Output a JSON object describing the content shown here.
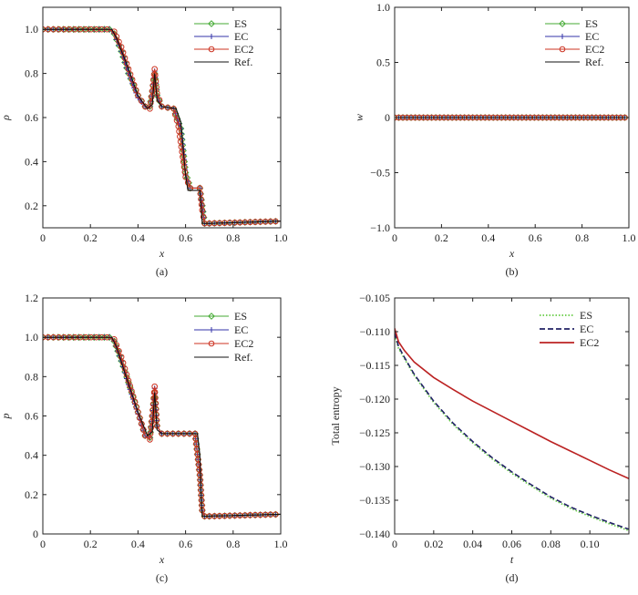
{
  "chart_data": [
    {
      "panel": "(a)",
      "type": "line",
      "xlabel": "x",
      "ylabel": "ρ",
      "xlim": [
        0,
        1
      ],
      "ylim": [
        0.1,
        1.1
      ],
      "xticks": [
        "0",
        "0.2",
        "0.4",
        "0.6",
        "0.8",
        "1.0"
      ],
      "yticks": [
        "0.2",
        "0.4",
        "0.6",
        "0.8",
        "1.0"
      ],
      "grid": false,
      "legend_position": "top-right",
      "series": [
        {
          "name": "ES",
          "color": "#44aa33",
          "marker": "diamond",
          "x": [
            0,
            0.28,
            0.3,
            0.33,
            0.36,
            0.4,
            0.43,
            0.45,
            0.46,
            0.47,
            0.48,
            0.5,
            0.55,
            0.58,
            0.6,
            0.62,
            0.66,
            0.67,
            0.68,
            0.7,
            1.0
          ],
          "y": [
            1.0,
            1.0,
            0.98,
            0.9,
            0.8,
            0.7,
            0.65,
            0.65,
            0.72,
            0.8,
            0.7,
            0.65,
            0.64,
            0.55,
            0.35,
            0.28,
            0.28,
            0.2,
            0.12,
            0.12,
            0.13
          ]
        },
        {
          "name": "EC",
          "color": "#3333aa",
          "marker": "plus",
          "x": [
            0,
            0.28,
            0.3,
            0.33,
            0.36,
            0.4,
            0.43,
            0.45,
            0.46,
            0.47,
            0.48,
            0.5,
            0.55,
            0.58,
            0.6,
            0.62,
            0.66,
            0.67,
            0.68,
            0.7,
            1.0
          ],
          "y": [
            1.0,
            1.0,
            0.98,
            0.9,
            0.8,
            0.69,
            0.65,
            0.65,
            0.72,
            0.81,
            0.7,
            0.65,
            0.64,
            0.55,
            0.34,
            0.28,
            0.28,
            0.2,
            0.12,
            0.12,
            0.13
          ]
        },
        {
          "name": "EC2",
          "color": "#cc3322",
          "marker": "circle",
          "x": [
            0,
            0.27,
            0.3,
            0.33,
            0.36,
            0.4,
            0.43,
            0.45,
            0.46,
            0.47,
            0.48,
            0.5,
            0.55,
            0.57,
            0.6,
            0.62,
            0.66,
            0.67,
            0.68,
            0.7,
            1.0
          ],
          "y": [
            1.0,
            1.0,
            0.99,
            0.92,
            0.82,
            0.7,
            0.65,
            0.64,
            0.72,
            0.82,
            0.71,
            0.65,
            0.64,
            0.56,
            0.33,
            0.28,
            0.28,
            0.18,
            0.12,
            0.12,
            0.13
          ]
        },
        {
          "name": "Ref.",
          "color": "#111111",
          "marker": "none",
          "x": [
            0,
            0.29,
            0.31,
            0.35,
            0.4,
            0.44,
            0.46,
            0.47,
            0.48,
            0.5,
            0.56,
            0.58,
            0.6,
            0.61,
            0.66,
            0.665,
            0.67,
            0.7,
            1.0
          ],
          "y": [
            1.0,
            1.0,
            0.96,
            0.85,
            0.7,
            0.64,
            0.66,
            0.8,
            0.68,
            0.65,
            0.64,
            0.58,
            0.34,
            0.27,
            0.27,
            0.2,
            0.12,
            0.12,
            0.13
          ]
        }
      ]
    },
    {
      "panel": "(b)",
      "type": "line",
      "xlabel": "x",
      "ylabel": "w",
      "xlim": [
        0,
        1
      ],
      "ylim": [
        -1,
        1
      ],
      "xticks": [
        "0",
        "0.2",
        "0.4",
        "0.6",
        "0.8",
        "1.0"
      ],
      "yticks": [
        "−1.0",
        "−0.5",
        "0",
        "0.5",
        "1.0"
      ],
      "grid": false,
      "legend_position": "top-right",
      "series": [
        {
          "name": "ES",
          "color": "#44aa33",
          "marker": "diamond",
          "x": [
            0,
            1
          ],
          "y": [
            0,
            0
          ]
        },
        {
          "name": "EC",
          "color": "#3333aa",
          "marker": "plus",
          "x": [
            0,
            1
          ],
          "y": [
            0,
            0
          ]
        },
        {
          "name": "EC2",
          "color": "#cc3322",
          "marker": "circle",
          "x": [
            0,
            1
          ],
          "y": [
            0,
            0
          ]
        },
        {
          "name": "Ref.",
          "color": "#111111",
          "marker": "none",
          "x": [
            0,
            1
          ],
          "y": [
            0,
            0
          ]
        }
      ]
    },
    {
      "panel": "(c)",
      "type": "line",
      "xlabel": "x",
      "ylabel": "p",
      "xlim": [
        0,
        1
      ],
      "ylim": [
        0,
        1.2
      ],
      "xticks": [
        "0",
        "0.2",
        "0.4",
        "0.6",
        "0.8",
        "1.0"
      ],
      "yticks": [
        "0",
        "0.2",
        "0.4",
        "0.6",
        "0.8",
        "1.0",
        "1.2"
      ],
      "grid": false,
      "legend_position": "top-right",
      "series": [
        {
          "name": "ES",
          "color": "#44aa33",
          "marker": "diamond",
          "x": [
            0,
            0.28,
            0.3,
            0.33,
            0.36,
            0.4,
            0.43,
            0.45,
            0.46,
            0.47,
            0.48,
            0.5,
            0.64,
            0.66,
            0.67,
            0.68,
            0.7,
            1.0
          ],
          "y": [
            1.0,
            1.0,
            0.98,
            0.88,
            0.77,
            0.62,
            0.5,
            0.49,
            0.6,
            0.72,
            0.55,
            0.51,
            0.51,
            0.3,
            0.12,
            0.09,
            0.09,
            0.1
          ]
        },
        {
          "name": "EC",
          "color": "#3333aa",
          "marker": "plus",
          "x": [
            0,
            0.28,
            0.3,
            0.33,
            0.36,
            0.4,
            0.43,
            0.45,
            0.46,
            0.47,
            0.48,
            0.5,
            0.64,
            0.66,
            0.67,
            0.68,
            0.7,
            1.0
          ],
          "y": [
            1.0,
            1.0,
            0.98,
            0.88,
            0.76,
            0.61,
            0.5,
            0.49,
            0.6,
            0.74,
            0.55,
            0.51,
            0.51,
            0.3,
            0.12,
            0.09,
            0.09,
            0.1
          ]
        },
        {
          "name": "EC2",
          "color": "#cc3322",
          "marker": "circle",
          "x": [
            0,
            0.27,
            0.3,
            0.33,
            0.36,
            0.4,
            0.43,
            0.45,
            0.46,
            0.47,
            0.48,
            0.5,
            0.64,
            0.66,
            0.67,
            0.68,
            0.7,
            1.0
          ],
          "y": [
            1.0,
            1.0,
            0.99,
            0.9,
            0.78,
            0.62,
            0.5,
            0.48,
            0.6,
            0.75,
            0.55,
            0.51,
            0.51,
            0.3,
            0.12,
            0.09,
            0.09,
            0.1
          ]
        },
        {
          "name": "Ref.",
          "color": "#111111",
          "marker": "none",
          "x": [
            0,
            0.29,
            0.31,
            0.35,
            0.4,
            0.44,
            0.46,
            0.47,
            0.48,
            0.5,
            0.65,
            0.66,
            0.665,
            0.67,
            1.0
          ],
          "y": [
            1.0,
            1.0,
            0.95,
            0.8,
            0.62,
            0.5,
            0.52,
            0.72,
            0.53,
            0.51,
            0.51,
            0.4,
            0.2,
            0.09,
            0.1
          ]
        }
      ]
    },
    {
      "panel": "(d)",
      "type": "line",
      "xlabel": "t",
      "ylabel": "Total entropy",
      "xlim": [
        0,
        0.12
      ],
      "ylim": [
        -0.14,
        -0.105
      ],
      "xticks": [
        "0",
        "0.02",
        "0.04",
        "0.06",
        "0.08",
        "0.10"
      ],
      "yticks": [
        "−0.140",
        "−0.135",
        "−0.130",
        "−0.125",
        "−0.120",
        "−0.115",
        "−0.110",
        "−0.105"
      ],
      "grid": false,
      "legend_position": "top-right",
      "series": [
        {
          "name": "ES",
          "color": "#66cc44",
          "style": "dotted",
          "x": [
            0,
            0.002,
            0.005,
            0.01,
            0.02,
            0.03,
            0.04,
            0.05,
            0.06,
            0.07,
            0.08,
            0.09,
            0.1,
            0.11,
            0.12
          ],
          "y": [
            -0.1105,
            -0.1125,
            -0.114,
            -0.1165,
            -0.1205,
            -0.1238,
            -0.1265,
            -0.1289,
            -0.131,
            -0.1329,
            -0.1347,
            -0.1362,
            -0.1374,
            -0.1385,
            -0.1395
          ]
        },
        {
          "name": "EC",
          "color": "#222266",
          "style": "dashed",
          "x": [
            0,
            0.002,
            0.005,
            0.01,
            0.02,
            0.03,
            0.04,
            0.05,
            0.06,
            0.07,
            0.08,
            0.09,
            0.1,
            0.11,
            0.12
          ],
          "y": [
            -0.1102,
            -0.1122,
            -0.1138,
            -0.1163,
            -0.1203,
            -0.1236,
            -0.1263,
            -0.1287,
            -0.1308,
            -0.1327,
            -0.1345,
            -0.136,
            -0.1372,
            -0.1383,
            -0.1393
          ]
        },
        {
          "name": "EC2",
          "color": "#bb2222",
          "style": "solid",
          "x": [
            0,
            0.002,
            0.005,
            0.01,
            0.02,
            0.03,
            0.04,
            0.05,
            0.06,
            0.07,
            0.08,
            0.09,
            0.1,
            0.11,
            0.12
          ],
          "y": [
            -0.1095,
            -0.1115,
            -0.1128,
            -0.1145,
            -0.1168,
            -0.1186,
            -0.1203,
            -0.1218,
            -0.1233,
            -0.1248,
            -0.1263,
            -0.1277,
            -0.1291,
            -0.1305,
            -0.1318
          ]
        }
      ]
    }
  ]
}
